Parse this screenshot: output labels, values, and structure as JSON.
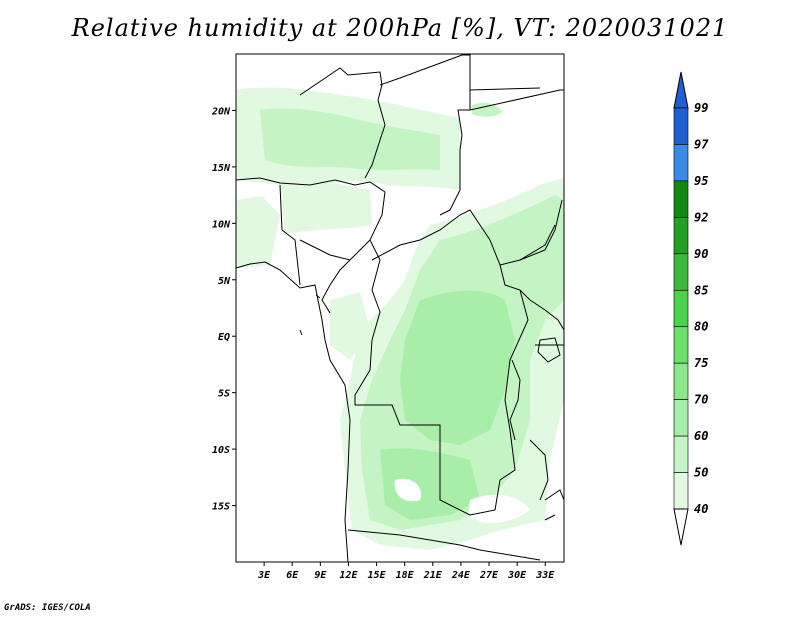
{
  "title": "Relative humidity at 200hPa [%], VT: 2020031021",
  "credit": "GrADS: IGES/COLA",
  "map": {
    "lat_labels": [
      "20N",
      "15N",
      "10N",
      "5N",
      "EQ",
      "5S",
      "10S",
      "15S"
    ],
    "lat_values": [
      20,
      15,
      10,
      5,
      0,
      -5,
      -10,
      -15
    ],
    "lon_labels": [
      "3E",
      "6E",
      "9E",
      "12E",
      "15E",
      "18E",
      "21E",
      "24E",
      "27E",
      "30E",
      "33E"
    ],
    "lon_values": [
      3,
      6,
      9,
      12,
      15,
      18,
      21,
      24,
      27,
      30,
      33
    ],
    "lon_range": [
      0,
      35
    ],
    "lat_range": [
      -20,
      25
    ]
  },
  "colorbar": {
    "labels": [
      "99",
      "97",
      "95",
      "92",
      "90",
      "85",
      "80",
      "75",
      "70",
      "60",
      "50",
      "40"
    ],
    "colors": [
      "#1f5fd0",
      "#3b8be6",
      "#118811",
      "#22a022",
      "#3cb83c",
      "#4cd24c",
      "#6be06b",
      "#8ae88a",
      "#a8eea8",
      "#c4f4c4",
      "#e0f9e0"
    ],
    "top_arrow_color": "#1f5fd0",
    "bottom_arrow_color": "#ffffff"
  },
  "fill_colors": {
    "level_40": "#e0f9e0",
    "level_50": "#c4f4c4",
    "level_60": "#a8eea8"
  }
}
